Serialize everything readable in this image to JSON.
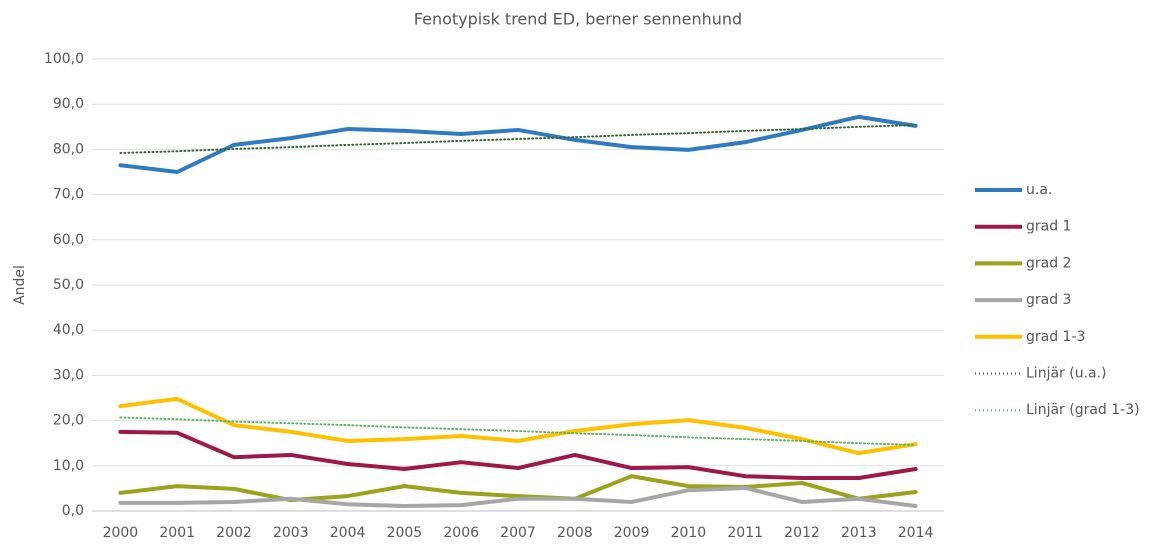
{
  "chart_data": {
    "type": "line",
    "title": "Fenotypisk trend ED, berner sennenhund",
    "y_label": "Andel",
    "categories": [
      "2000",
      "2001",
      "2002",
      "2003",
      "2004",
      "2005",
      "2006",
      "2007",
      "2008",
      "2009",
      "2010",
      "2011",
      "2012",
      "2013",
      "2014"
    ],
    "ylim": [
      0,
      100
    ],
    "yticks": [
      {
        "value": 0,
        "label": "0,0"
      },
      {
        "value": 10,
        "label": "10,0"
      },
      {
        "value": 20,
        "label": "20,0"
      },
      {
        "value": 30,
        "label": "30,0"
      },
      {
        "value": 40,
        "label": "40,0"
      },
      {
        "value": 50,
        "label": "50,0"
      },
      {
        "value": 60,
        "label": "60,0"
      },
      {
        "value": 70,
        "label": "70,0"
      },
      {
        "value": 80,
        "label": "80,0"
      },
      {
        "value": 90,
        "label": "90,0"
      },
      {
        "value": 100,
        "label": "100,0"
      }
    ],
    "grid": true,
    "legend": "right",
    "series": [
      {
        "name": "u.a.",
        "color": "#2f7bc1",
        "values": [
          76.5,
          75.0,
          81.0,
          82.5,
          84.5,
          84.1,
          83.4,
          84.3,
          82.1,
          80.5,
          79.9,
          81.6,
          84.3,
          87.2,
          85.2
        ]
      },
      {
        "name": "grad 1",
        "color": "#a0174a",
        "values": [
          17.5,
          17.3,
          11.9,
          12.4,
          10.4,
          9.3,
          10.8,
          9.5,
          12.4,
          9.5,
          9.7,
          7.7,
          7.3,
          7.3,
          9.3
        ]
      },
      {
        "name": "grad 2",
        "color": "#9aa31a",
        "values": [
          4.0,
          5.5,
          4.9,
          2.4,
          3.3,
          5.5,
          4.0,
          3.3,
          2.7,
          7.7,
          5.5,
          5.3,
          6.2,
          2.7,
          4.2
        ]
      },
      {
        "name": "grad 3",
        "color": "#a6a6a6",
        "values": [
          1.8,
          1.8,
          2.0,
          2.7,
          1.5,
          1.1,
          1.3,
          2.7,
          2.7,
          2.0,
          4.6,
          5.1,
          2.0,
          2.7,
          1.1
        ]
      },
      {
        "name": "grad 1-3",
        "color": "#ffc000",
        "values": [
          23.2,
          24.8,
          19.0,
          17.5,
          15.5,
          15.9,
          16.6,
          15.5,
          17.7,
          19.2,
          20.1,
          18.4,
          15.9,
          12.8,
          14.8
        ]
      },
      {
        "name": "Linjär (u.a.)",
        "color": "#2e6b30",
        "dash": "dotted",
        "values": [
          79.2,
          79.6,
          80.1,
          80.5,
          81.0,
          81.4,
          81.9,
          82.3,
          82.7,
          83.2,
          83.6,
          84.1,
          84.5,
          85.0,
          85.4
        ]
      },
      {
        "name": "Linjär (grad 1-3)",
        "color": "#5cb85c",
        "dash": "dotted",
        "values": [
          20.7,
          20.3,
          19.8,
          19.4,
          19.0,
          18.5,
          18.1,
          17.7,
          17.2,
          16.8,
          16.3,
          15.9,
          15.5,
          15.0,
          14.6
        ]
      }
    ]
  }
}
